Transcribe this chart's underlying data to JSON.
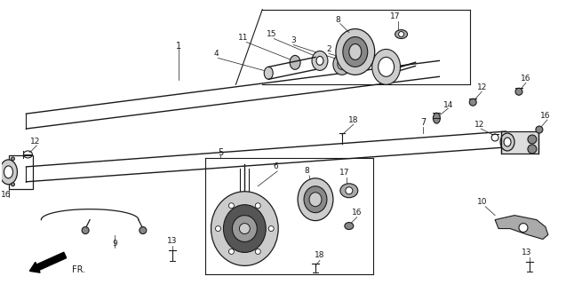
{
  "bg_color": "#ffffff",
  "line_color": "#1a1a1a",
  "gray_dark": "#555555",
  "gray_med": "#888888",
  "gray_light": "#bbbbbb",
  "gray_fill": "#cccccc"
}
